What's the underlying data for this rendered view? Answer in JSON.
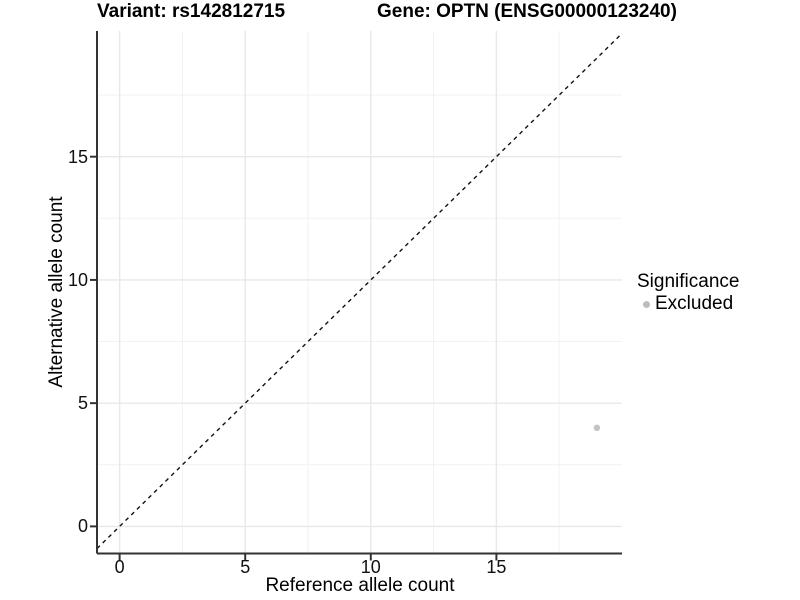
{
  "titles": {
    "variant": "Variant: rs142812715",
    "gene": "Gene: OPTN (ENSG00000123240)"
  },
  "legend": {
    "title": "Significance",
    "items": [
      {
        "label": "Excluded",
        "color": "#bdbdbd"
      }
    ]
  },
  "colors": {
    "axis_line": "#333333",
    "tick_mark": "#333333",
    "major_grid": "#e8e8e8",
    "minor_grid": "#f2f2f2",
    "identity_line": "#111111",
    "point_fill": "#c3c3c3",
    "background": "#ffffff"
  },
  "chart_data": {
    "type": "scatter",
    "title_left": "Variant: rs142812715",
    "title_right": "Gene: OPTN (ENSG00000123240)",
    "xlabel": "Reference allele count",
    "ylabel": "Alternative allele count",
    "xlim": [
      -0.9,
      20.0
    ],
    "ylim": [
      -1.1,
      20.1
    ],
    "x_ticks": [
      0,
      5,
      10,
      15
    ],
    "y_ticks": [
      0,
      5,
      10,
      15
    ],
    "x_tick_labels": [
      "0",
      "5",
      "10",
      "15"
    ],
    "y_tick_labels": [
      "0",
      "5",
      "10",
      "15"
    ],
    "x_minor_gridlines": [
      2.5,
      7.5,
      12.5,
      17.5
    ],
    "y_minor_gridlines": [
      2.5,
      7.5,
      12.5,
      17.5
    ],
    "grid": true,
    "legend_position": "right",
    "legend_title": "Significance",
    "series": [
      {
        "name": "Excluded",
        "points": [
          {
            "x": 19,
            "y": 4
          }
        ]
      }
    ],
    "reference_line": {
      "type": "identity y=x",
      "style": "dashed",
      "color": "black"
    }
  }
}
